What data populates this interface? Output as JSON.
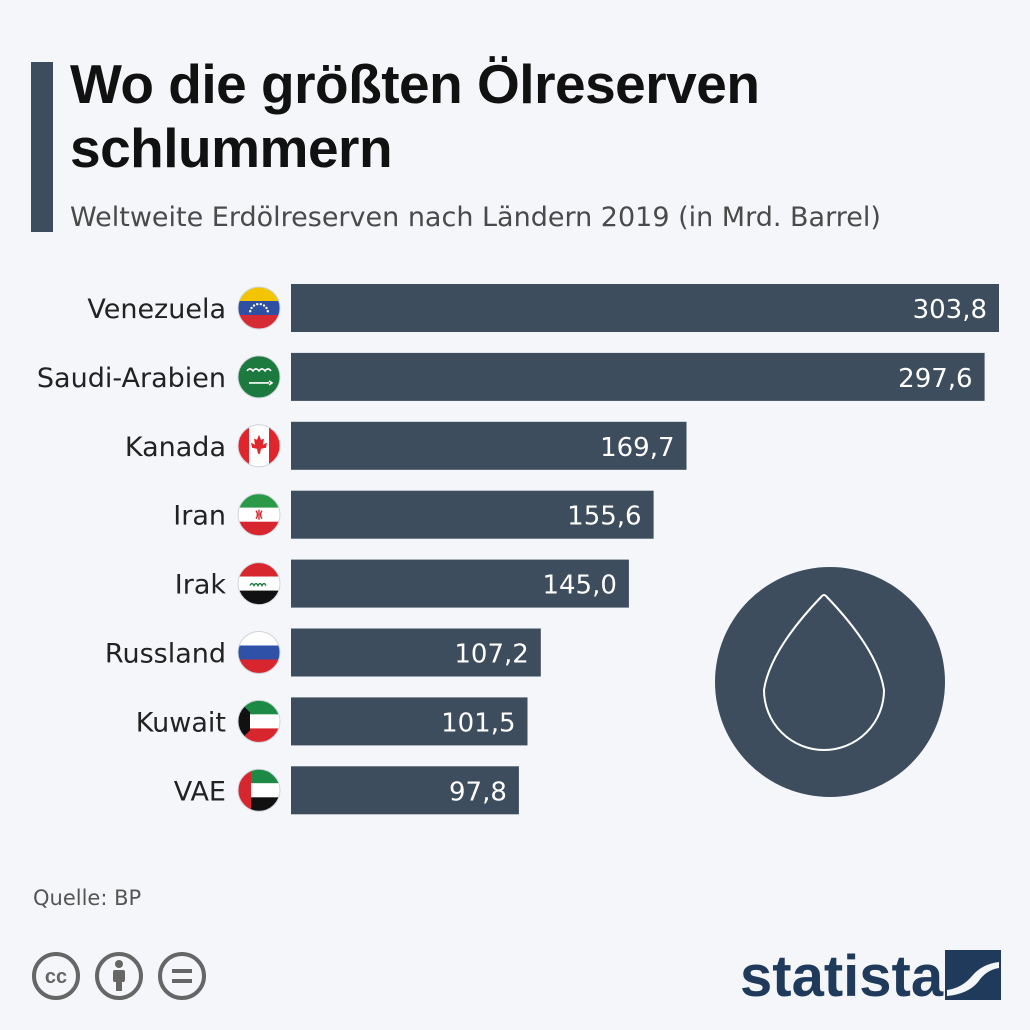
{
  "title": "Wo die größten Ölreserven schlummern",
  "subtitle": "Weltweite Erdölreserven nach Ländern 2019 (in Mrd. Barrel)",
  "source": "Quelle: BP",
  "brand": "statista",
  "icons": [
    "oil-drop-icon",
    "cc-icon",
    "by-icon",
    "nd-icon",
    "statista-logo-icon"
  ],
  "colors": {
    "bar": "#3d4d5e",
    "background": "#f4f6f9",
    "bar_label": "#ffffff"
  },
  "chart_data": {
    "type": "bar",
    "orientation": "horizontal",
    "categories": [
      "Venezuela",
      "Saudi-Arabien",
      "Kanada",
      "Iran",
      "Irak",
      "Russland",
      "Kuwait",
      "VAE"
    ],
    "values": [
      303.8,
      297.6,
      169.7,
      155.6,
      145.0,
      107.2,
      101.5,
      97.8
    ],
    "value_labels": [
      "303,8",
      "297,6",
      "169,7",
      "155,6",
      "145,0",
      "107,2",
      "101,5",
      "97,8"
    ],
    "xlim": [
      0,
      303.8
    ],
    "grid": false,
    "legend": "none"
  }
}
